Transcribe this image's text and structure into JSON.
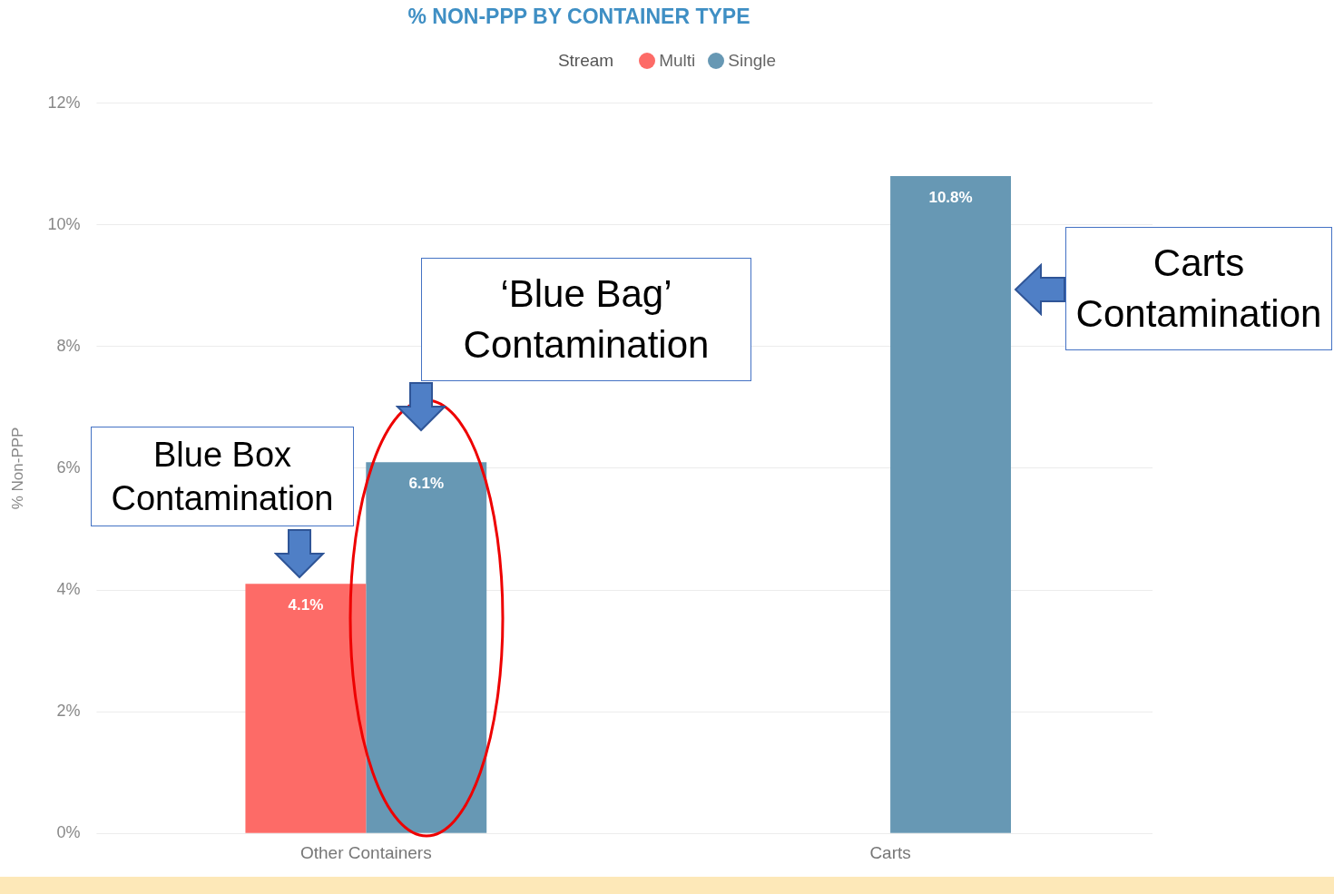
{
  "chart_data": {
    "type": "bar",
    "title": "% NON-PPP BY CONTAINER TYPE",
    "ylabel": "% Non-PPP",
    "legend_title": "Stream",
    "legend": "top",
    "grid": "y",
    "categories": [
      "Other Containers",
      "Carts"
    ],
    "series": [
      {
        "name": "Multi",
        "color": "#fd6b67",
        "values": [
          4.1,
          null
        ],
        "value_labels": [
          "4.1%",
          null
        ]
      },
      {
        "name": "Single",
        "color": "#6798b4",
        "values": [
          6.1,
          10.8
        ],
        "value_labels": [
          "6.1%",
          "10.8%"
        ]
      }
    ],
    "ylim": [
      0,
      12
    ],
    "yticks": [
      {
        "value": 0,
        "label": "0%"
      },
      {
        "value": 2,
        "label": "2%"
      },
      {
        "value": 4,
        "label": "4%"
      },
      {
        "value": 6,
        "label": "6%"
      },
      {
        "value": 8,
        "label": "8%"
      },
      {
        "value": 10,
        "label": "10%"
      },
      {
        "value": 12,
        "label": "12%"
      }
    ],
    "annotations": [
      "‘Blue Bag’ Contamination",
      "Blue Box Contamination",
      "Carts Contamination"
    ]
  }
}
